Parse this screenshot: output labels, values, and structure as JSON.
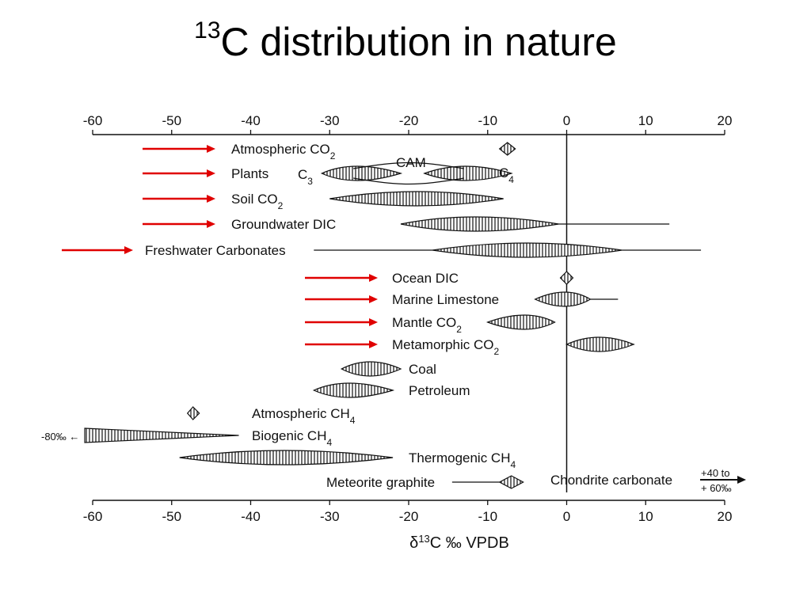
{
  "title": {
    "superscript": "13",
    "main": "C distribution in nature"
  },
  "colors": {
    "arrow": "#e00000",
    "ink": "#111111",
    "hatch": "#222222"
  },
  "chart_data": {
    "type": "range",
    "xlabel": "δ13C ‰ VPDB",
    "xlim": [
      -60,
      20
    ],
    "ticks": [
      -60,
      -50,
      -40,
      -30,
      -20,
      -10,
      0,
      10,
      20
    ],
    "tick_labels_top": [
      "-60",
      "-50",
      "-40",
      "-30",
      "-20",
      "-10",
      "0",
      "10",
      "20"
    ],
    "tick_labels_bottom": [
      "-60",
      "-50",
      "-40",
      "-30",
      "-20",
      "-10",
      "0",
      "10",
      "20"
    ],
    "reference_line": 0,
    "annotations": {
      "cam": "CAM",
      "c3": "C3",
      "c4": "C4",
      "biogenic_offscale": "-80‰ ←",
      "chondrite_offscale": [
        "+40 to",
        "+ 60‰"
      ]
    },
    "rows": [
      {
        "label": "Atmospheric CO2",
        "marks": [
          {
            "shape": "diamond",
            "from": -8.5,
            "to": -6.5,
            "peak": -7.5
          }
        ]
      },
      {
        "label": "Plants",
        "marks": [
          {
            "shape": "lens",
            "from": -31,
            "to": -21,
            "peak": -27
          },
          {
            "shape": "lens",
            "from": -18,
            "to": -7,
            "peak": -13
          }
        ]
      },
      {
        "label": "Soil CO2",
        "marks": [
          {
            "shape": "lens",
            "from": -30,
            "to": -8,
            "peak": -19
          }
        ]
      },
      {
        "label": "Groundwater DIC",
        "marks": [
          {
            "shape": "lens",
            "from": -21,
            "to": -1,
            "peak": -12,
            "tail_to": 13
          }
        ]
      },
      {
        "label": "Freshwater Carbonates",
        "marks": [
          {
            "shape": "lens",
            "from": -17,
            "to": 7,
            "peak": -5,
            "tail_from": -32,
            "tail_to": 17
          }
        ]
      },
      {
        "label": "Ocean DIC",
        "marks": [
          {
            "shape": "diamond",
            "from": -0.8,
            "to": 0.8,
            "peak": 0
          }
        ]
      },
      {
        "label": "Marine Limestone",
        "marks": [
          {
            "shape": "lens",
            "from": -4,
            "to": 3,
            "peak": 0,
            "tail_to": 6.5
          }
        ]
      },
      {
        "label": "Mantle CO2",
        "marks": [
          {
            "shape": "lens",
            "from": -10,
            "to": -1.5,
            "peak": -5
          }
        ]
      },
      {
        "label": "Metamorphic CO2",
        "marks": [
          {
            "shape": "lens",
            "from": 0,
            "to": 8.5,
            "peak": 4
          }
        ]
      },
      {
        "label": "Coal",
        "marks": [
          {
            "shape": "lens",
            "from": -28.5,
            "to": -21,
            "peak": -25
          }
        ]
      },
      {
        "label": "Petroleum",
        "marks": [
          {
            "shape": "lens",
            "from": -32,
            "to": -22,
            "peak": -28
          }
        ]
      },
      {
        "label": "Atmospheric CH4",
        "marks": [
          {
            "shape": "diamond",
            "from": -48,
            "to": -46.5,
            "peak": -47.3
          }
        ]
      },
      {
        "label": "Biogenic CH4",
        "marks": [
          {
            "shape": "wedge",
            "from": -61,
            "to": -41.5
          }
        ]
      },
      {
        "label": "Thermogenic CH4",
        "marks": [
          {
            "shape": "lens",
            "from": -49,
            "to": -22,
            "peak": -36
          }
        ]
      },
      {
        "label": "Meteorite graphite",
        "marks": [
          {
            "shape": "diamond",
            "from": -8.5,
            "to": -5.5,
            "peak": -7,
            "tail_from": -14.5
          }
        ]
      },
      {
        "label": "Chondrite carbonate",
        "marks": [
          {
            "shape": "arrow",
            "from": 17,
            "to": 23
          }
        ]
      }
    ]
  }
}
